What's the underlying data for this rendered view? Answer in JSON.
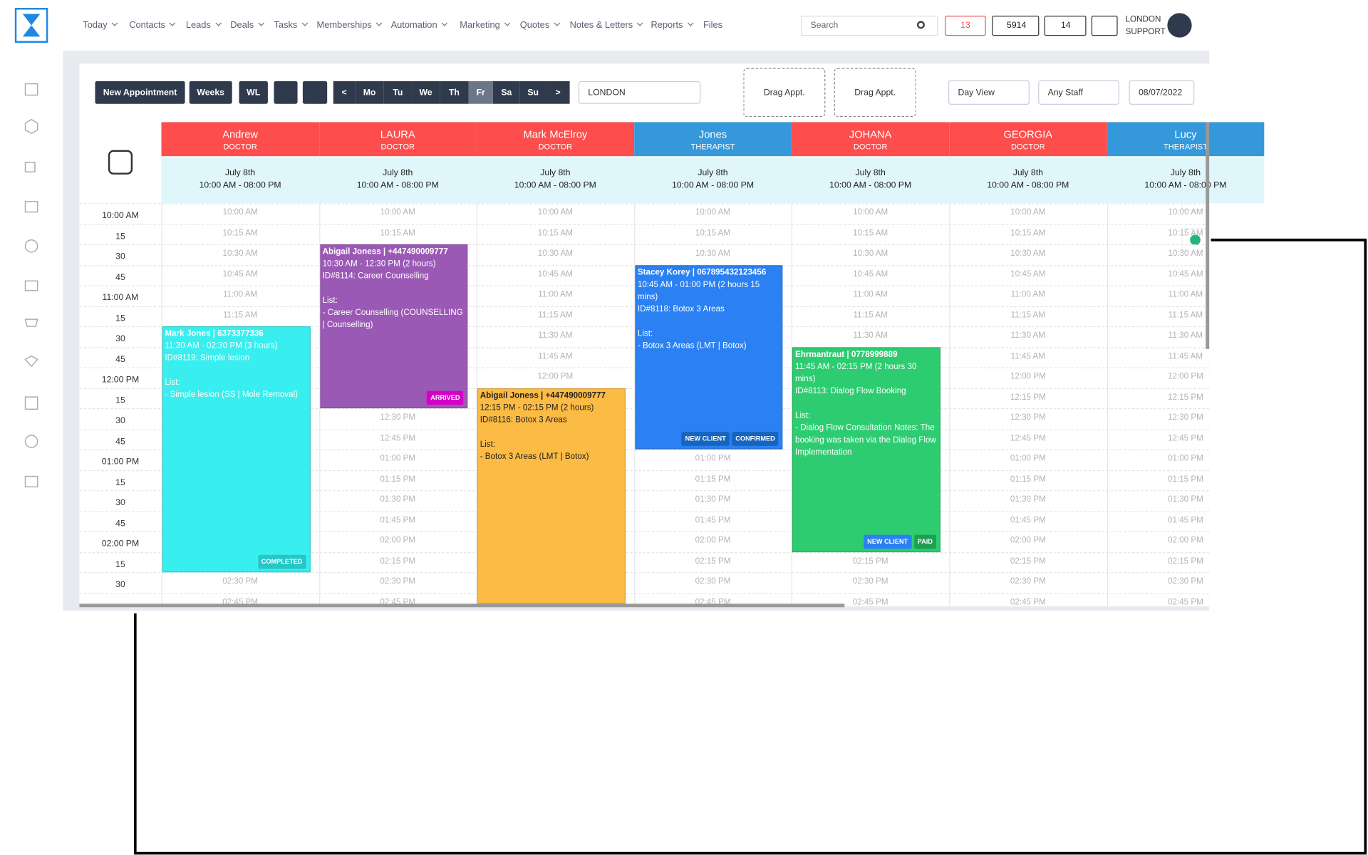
{
  "nav": {
    "items": [
      "Today",
      "Contacts",
      "Leads",
      "Deals",
      "Tasks",
      "Memberships",
      "Automation",
      "Marketing",
      "Quotes",
      "Notes & Letters",
      "Reports",
      "Files"
    ]
  },
  "header": {
    "search": "Search",
    "mail_count": "13",
    "phone_count": "5914",
    "task_count": "14",
    "user_line1": "LONDON",
    "user_line2": "SUPPORT"
  },
  "toolbar": {
    "new_appointment": "New Appointment",
    "weeks": "Weeks",
    "wl": "WL",
    "days": [
      "<",
      "Mo",
      "Tu",
      "We",
      "Th",
      "Fr",
      "Sa",
      "Su",
      ">"
    ],
    "location": "LONDON",
    "drag": [
      "Drag Appt.",
      "Drag Appt."
    ],
    "view": "Day View",
    "staff": "Any Staff",
    "date": "08/07/2022"
  },
  "calendar": {
    "time_labels": [
      "10:00 AM",
      "15",
      "30",
      "45",
      "11:00 AM",
      "15",
      "30",
      "45",
      "12:00 PM",
      "15",
      "30",
      "45",
      "01:00 PM",
      "15",
      "30",
      "45",
      "02:00 PM",
      "15",
      "30"
    ],
    "slot_labels": [
      "10:00 AM",
      "10:15 AM",
      "10:30 AM",
      "10:45 AM",
      "11:00 AM",
      "11:15 AM",
      "11:30 AM",
      "11:45 AM",
      "12:00 PM",
      "12:15 PM",
      "12:30 PM",
      "12:45 PM",
      "01:00 PM",
      "01:15 PM",
      "01:30 PM",
      "01:45 PM",
      "02:00 PM",
      "02:15 PM",
      "02:30 PM",
      "02:45 PM"
    ],
    "staff": [
      {
        "name": "Andrew",
        "role": "DOCTOR",
        "date": "July 8th",
        "hours": "10:00 AM - 08:00 PM",
        "color": "#fd4d4d",
        "appointments": [
          {
            "title": "Mark Jones | 6373377336",
            "time": "11:30 AM - 02:30 PM (3 hours)",
            "id": "ID#8119: Simple lesion",
            "list": "List:",
            "item": "- Simple lesion (SS | Mole Removal)",
            "color": "#38eeee",
            "text_color": "#ffffff",
            "badges": [
              {
                "text": "COMPLETED",
                "color": "#26c6c6"
              }
            ]
          }
        ]
      },
      {
        "name": "LAURA",
        "role": "DOCTOR",
        "date": "July 8th",
        "hours": "10:00 AM - 08:00 PM",
        "color": "#fd4d4d",
        "appointments": [
          {
            "title": "Abigail Joness | +447490009777",
            "time": "10:30 AM - 12:30 PM (2 hours)",
            "id": "ID#8114: Career Counselling",
            "list": "List:",
            "item": "- Career Counselling (COUNSELLING | Counselling)",
            "color": "#9b59b6",
            "text_color": "#ffffff",
            "badges": [
              {
                "text": "ARRIVED",
                "color": "#d400c8"
              }
            ]
          }
        ]
      },
      {
        "name": "Mark McElroy",
        "role": "DOCTOR",
        "date": "July 8th",
        "hours": "10:00 AM - 08:00 PM",
        "color": "#fd4d4d",
        "appointments": [
          {
            "title": "Abigail Joness | +447490009777",
            "time": "12:15 PM - 02:15 PM (2 hours)",
            "id": "ID#8116: Botox 3 Areas",
            "list": "List:",
            "item": "- Botox 3 Areas (LMT | Botox)",
            "color": "#fbbb45",
            "text_color": "#222222",
            "badges": []
          }
        ]
      },
      {
        "name": "Jones",
        "role": "THERAPIST",
        "date": "July 8th",
        "hours": "10:00 AM - 08:00 PM",
        "color": "#3498db",
        "appointments": [
          {
            "title": "Stacey Korey | 067895432123456",
            "time": "10:45 AM - 01:00 PM (2 hours 15 mins)",
            "id": "ID#8118: Botox 3 Areas",
            "list": "List:",
            "item": "- Botox 3 Areas (LMT | Botox)",
            "color": "#2b80f2",
            "text_color": "#ffffff",
            "badges": [
              {
                "text": "NEW CLIENT",
                "color": "#1565c0"
              },
              {
                "text": "CONFIRMED",
                "color": "#1565c0"
              }
            ]
          }
        ]
      },
      {
        "name": "JOHANA",
        "role": "DOCTOR",
        "date": "July 8th",
        "hours": "10:00 AM - 08:00 PM",
        "color": "#fd4d4d",
        "appointments": [
          {
            "title": "Ehrmantraut | 0778999889",
            "time": "11:45 AM - 02:15 PM (2 hours 30 mins)",
            "id": "ID#8113: Dialog Flow Booking",
            "list": "List:",
            "item": "- Dialog Flow Consultation Notes: The booking was taken via the Dialog Flow Implementation",
            "color": "#2ecc71",
            "text_color": "#ffffff",
            "badges": [
              {
                "text": "NEW CLIENT",
                "color": "#2b80f2"
              },
              {
                "text": "PAID",
                "color": "#1e9e50"
              }
            ]
          }
        ]
      },
      {
        "name": "GEORGIA",
        "role": "DOCTOR",
        "date": "July 8th",
        "hours": "10:00 AM - 08:00 PM",
        "color": "#fd4d4d",
        "appointments": []
      },
      {
        "name": "Lucy",
        "role": "THERAPIST",
        "date": "July 8th",
        "hours": "10:00 AM - 08:00 PM",
        "color": "#3498db",
        "appointments": []
      }
    ]
  }
}
